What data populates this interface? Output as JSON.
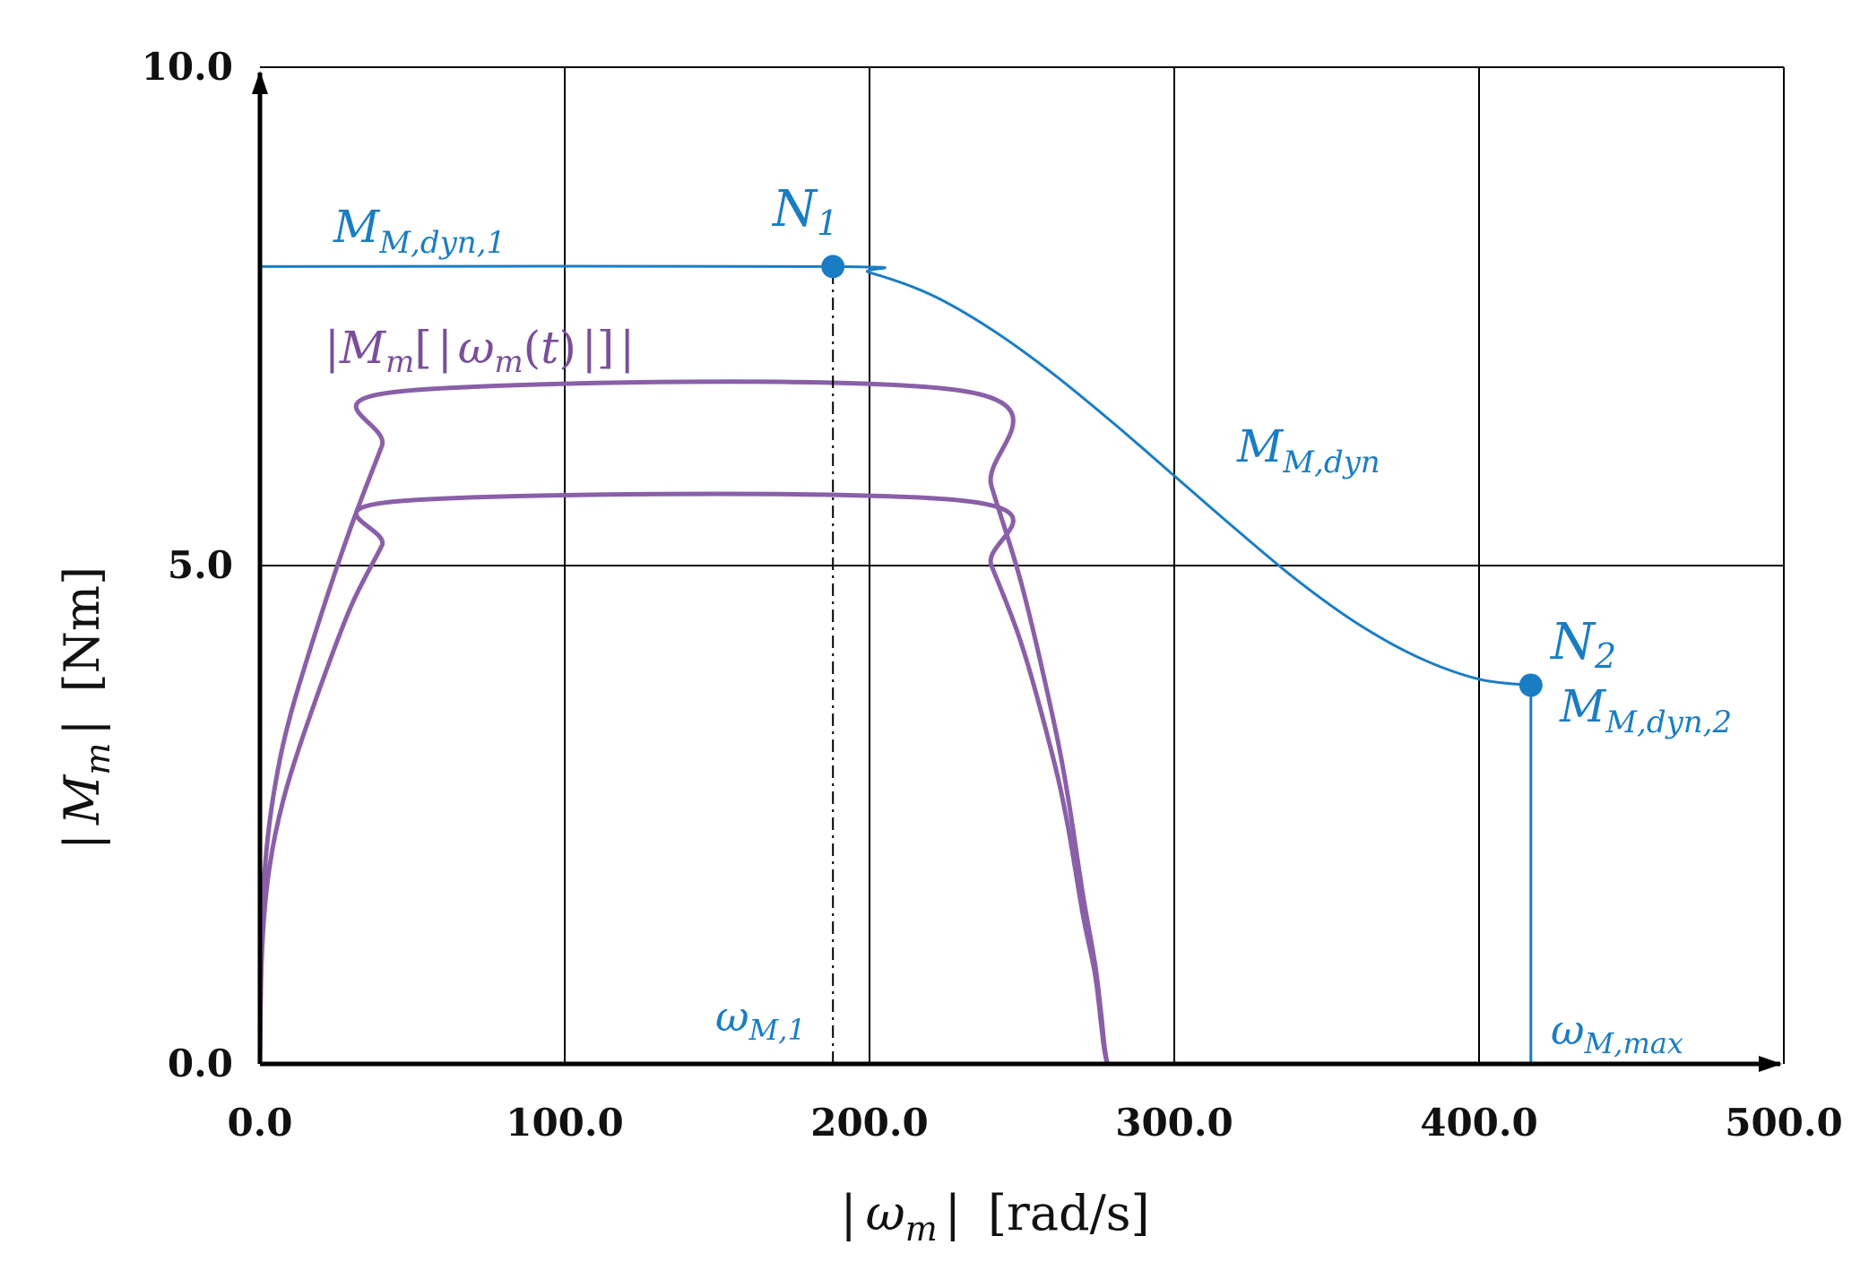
{
  "chart_data": {
    "type": "line",
    "title": "",
    "xlabel": {
      "bar_left": "|",
      "symbol": "ω",
      "sub": "m",
      "bar_right": "|",
      "unit": "[rad/s]"
    },
    "ylabel": {
      "bar_left": "|",
      "symbol": "M",
      "sub": "m",
      "bar_right": "|",
      "unit": "[Nm]"
    },
    "xlim": [
      0,
      500
    ],
    "ylim": [
      0,
      10
    ],
    "x_ticks": [
      0,
      100,
      200,
      300,
      400,
      500
    ],
    "x_tick_labels": [
      "0.0",
      "100.0",
      "200.0",
      "300.0",
      "400.0",
      "500.0"
    ],
    "y_ticks": [
      0,
      5,
      10
    ],
    "y_tick_labels": [
      "0.0",
      "5.0",
      "10.0"
    ],
    "grid": true,
    "colors": {
      "dyn": "#1a7dc4",
      "load": "#8a5fa8",
      "axis": "#000000",
      "grid": "#000000"
    },
    "series": [
      {
        "name": "M_M,dyn",
        "color": "#1a7dc4",
        "x": [
          0,
          188,
          200,
          220,
          240,
          260,
          280,
          300,
          320,
          340,
          360,
          380,
          400,
          417
        ],
        "y": [
          8.0,
          8.0,
          7.94,
          7.72,
          7.37,
          6.93,
          6.43,
          5.9,
          5.37,
          4.86,
          4.42,
          4.08,
          3.86,
          3.8
        ]
      },
      {
        "name": "|M_m[|ω_m(t)|]| (upper)",
        "color": "#8a5fa8",
        "x": [
          0,
          0.5,
          2,
          5,
          10,
          20,
          30,
          40,
          47,
          231,
          240,
          250,
          260,
          265,
          270,
          274,
          276,
          277,
          278
        ],
        "y": [
          0,
          1.3,
          2.1,
          2.8,
          3.5,
          4.5,
          5.4,
          6.2,
          6.75,
          6.75,
          5.8,
          4.8,
          3.5,
          2.7,
          1.7,
          1.0,
          0.5,
          0.2,
          0
        ]
      },
      {
        "name": "|M_m[|ω_m(t)|]| (lower)",
        "color": "#8a5fa8",
        "x": [
          0,
          0.5,
          2,
          5,
          10,
          20,
          30,
          40,
          47,
          231,
          240,
          250,
          260,
          265,
          270,
          274,
          276,
          277,
          278
        ],
        "y": [
          0,
          1.0,
          1.7,
          2.3,
          2.9,
          3.8,
          4.6,
          5.2,
          5.65,
          5.65,
          5.0,
          4.2,
          3.1,
          2.4,
          1.5,
          0.9,
          0.4,
          0.15,
          0
        ]
      }
    ],
    "points": [
      {
        "name": "N1",
        "x": 188,
        "y": 8.0
      },
      {
        "name": "N2",
        "x": 417,
        "y": 3.8
      }
    ],
    "reference_lines": {
      "omega_M1": {
        "x": 188,
        "y_from": 0,
        "y_to": 8.0,
        "style": "dash-dot"
      },
      "omega_M_max": {
        "x": 417,
        "y_from": 0,
        "y_to": 3.8,
        "style": "solid"
      }
    },
    "annotations": {
      "N1": {
        "main": "N",
        "sub": "1"
      },
      "N2": {
        "main": "N",
        "sub": "2"
      },
      "M_dyn1": {
        "main": "M",
        "sub": "M,dyn,1"
      },
      "M_dyn": {
        "main": "M",
        "sub": "M,dyn"
      },
      "M_dyn2": {
        "main": "M",
        "sub": "M,dyn,2"
      },
      "omega_M1": {
        "main": "ω",
        "sub": "M,1"
      },
      "omega_Mmax": {
        "main": "ω",
        "sub": "M,max"
      },
      "load_curve": {
        "p1": "|",
        "m": "M",
        "m_sub": "m",
        "p2": "[",
        "p3": "|",
        "w": "ω",
        "w_sub": "m",
        "p4": "(",
        "t": "t",
        "p5": ")",
        "p6": "|",
        "p7": "]",
        "p8": "|"
      }
    }
  }
}
